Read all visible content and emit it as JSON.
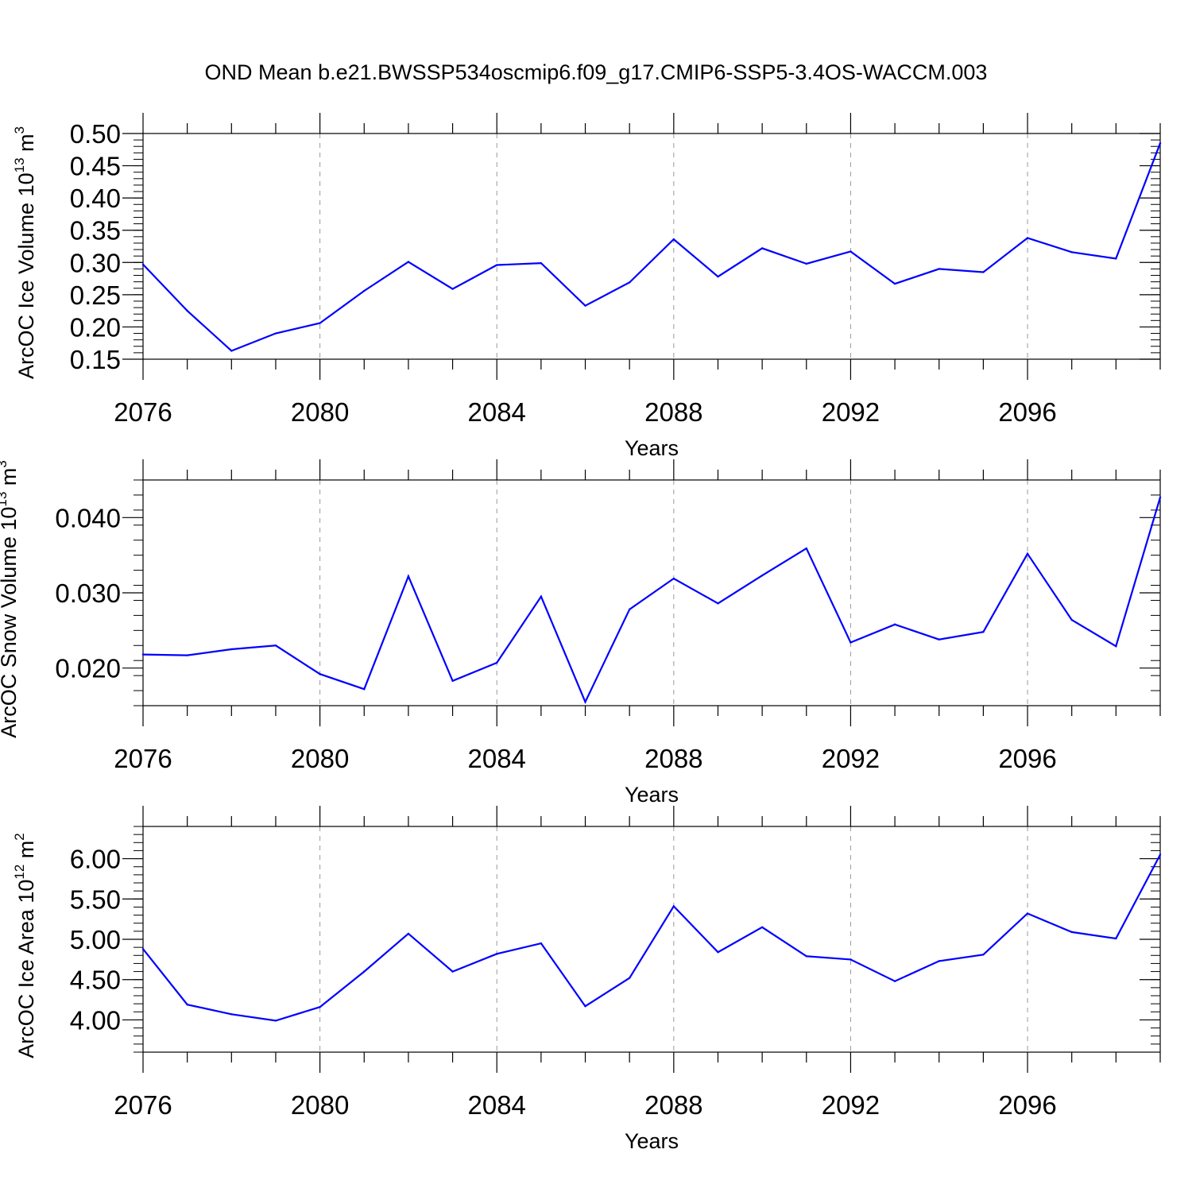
{
  "title": "OND Mean b.e21.BWSSP534oscmip6.f09_g17.CMIP6-SSP5-3.4OS-WACCM.003",
  "colors": {
    "line": "#0000ff",
    "axis": "#000000",
    "grid": "#999999"
  },
  "chart_data": [
    {
      "type": "line",
      "ylabel": {
        "main": "ArcOC Ice Volume 10",
        "sup": "13",
        "unit": " m",
        "unit_sup": "3"
      },
      "xlabel": "Years",
      "xlim": [
        2076,
        2099
      ],
      "ylim": [
        0.15,
        0.5
      ],
      "yticks": [
        0.15,
        0.2,
        0.25,
        0.3,
        0.35,
        0.4,
        0.45,
        0.5
      ],
      "ytick_labels": [
        "0.15",
        "0.20",
        "0.25",
        "0.30",
        "0.35",
        "0.40",
        "0.45",
        "0.50"
      ],
      "yminor_step": 0.01,
      "xticks": [
        2076,
        2080,
        2084,
        2088,
        2092,
        2096
      ],
      "xtick_labels": [
        "2076",
        "2080",
        "2084",
        "2088",
        "2092",
        "2096"
      ],
      "x": [
        2076,
        2077,
        2078,
        2079,
        2080,
        2081,
        2082,
        2083,
        2084,
        2085,
        2086,
        2087,
        2088,
        2089,
        2090,
        2091,
        2092,
        2093,
        2094,
        2095,
        2096,
        2097,
        2098,
        2099
      ],
      "values": [
        0.297,
        0.225,
        0.163,
        0.19,
        0.206,
        0.256,
        0.301,
        0.259,
        0.296,
        0.299,
        0.233,
        0.269,
        0.336,
        0.278,
        0.322,
        0.298,
        0.317,
        0.267,
        0.29,
        0.285,
        0.338,
        0.316,
        0.306,
        0.485
      ]
    },
    {
      "type": "line",
      "ylabel": {
        "main": "ArcOC Snow Volume 10",
        "sup": "13",
        "unit": " m",
        "unit_sup": "3"
      },
      "xlabel": "Years",
      "xlim": [
        2076,
        2099
      ],
      "ylim": [
        0.015,
        0.045
      ],
      "yticks": [
        0.02,
        0.03,
        0.04
      ],
      "ytick_labels": [
        "0.020",
        "0.030",
        "0.040"
      ],
      "yminor_step": 0.002,
      "xticks": [
        2076,
        2080,
        2084,
        2088,
        2092,
        2096
      ],
      "xtick_labels": [
        "2076",
        "2080",
        "2084",
        "2088",
        "2092",
        "2096"
      ],
      "x": [
        2076,
        2077,
        2078,
        2079,
        2080,
        2081,
        2082,
        2083,
        2084,
        2085,
        2086,
        2087,
        2088,
        2089,
        2090,
        2091,
        2092,
        2093,
        2094,
        2095,
        2096,
        2097,
        2098,
        2099
      ],
      "values": [
        0.0218,
        0.0217,
        0.0225,
        0.023,
        0.0192,
        0.0172,
        0.0322,
        0.0183,
        0.0207,
        0.0295,
        0.0155,
        0.0278,
        0.0319,
        0.0286,
        0.0323,
        0.0359,
        0.0234,
        0.0258,
        0.0238,
        0.0248,
        0.0352,
        0.0264,
        0.0229,
        0.0427
      ]
    },
    {
      "type": "line",
      "ylabel": {
        "main": "ArcOC Ice Area 10",
        "sup": "12",
        "unit": " m",
        "unit_sup": "2"
      },
      "xlabel": "Years",
      "xlim": [
        2076,
        2099
      ],
      "ylim": [
        3.6,
        6.4
      ],
      "yticks": [
        4.0,
        4.5,
        5.0,
        5.5,
        6.0
      ],
      "ytick_labels": [
        "4.00",
        "4.50",
        "5.00",
        "5.50",
        "6.00"
      ],
      "yminor_step": 0.1,
      "xticks": [
        2076,
        2080,
        2084,
        2088,
        2092,
        2096
      ],
      "xtick_labels": [
        "2076",
        "2080",
        "2084",
        "2088",
        "2092",
        "2096"
      ],
      "x": [
        2076,
        2077,
        2078,
        2079,
        2080,
        2081,
        2082,
        2083,
        2084,
        2085,
        2086,
        2087,
        2088,
        2089,
        2090,
        2091,
        2092,
        2093,
        2094,
        2095,
        2096,
        2097,
        2098,
        2099
      ],
      "values": [
        4.88,
        4.19,
        4.07,
        3.99,
        4.16,
        4.6,
        5.07,
        4.6,
        4.82,
        4.95,
        4.17,
        4.52,
        5.41,
        4.84,
        5.15,
        4.79,
        4.75,
        4.48,
        4.73,
        4.81,
        5.32,
        5.09,
        5.01,
        6.05
      ]
    }
  ]
}
